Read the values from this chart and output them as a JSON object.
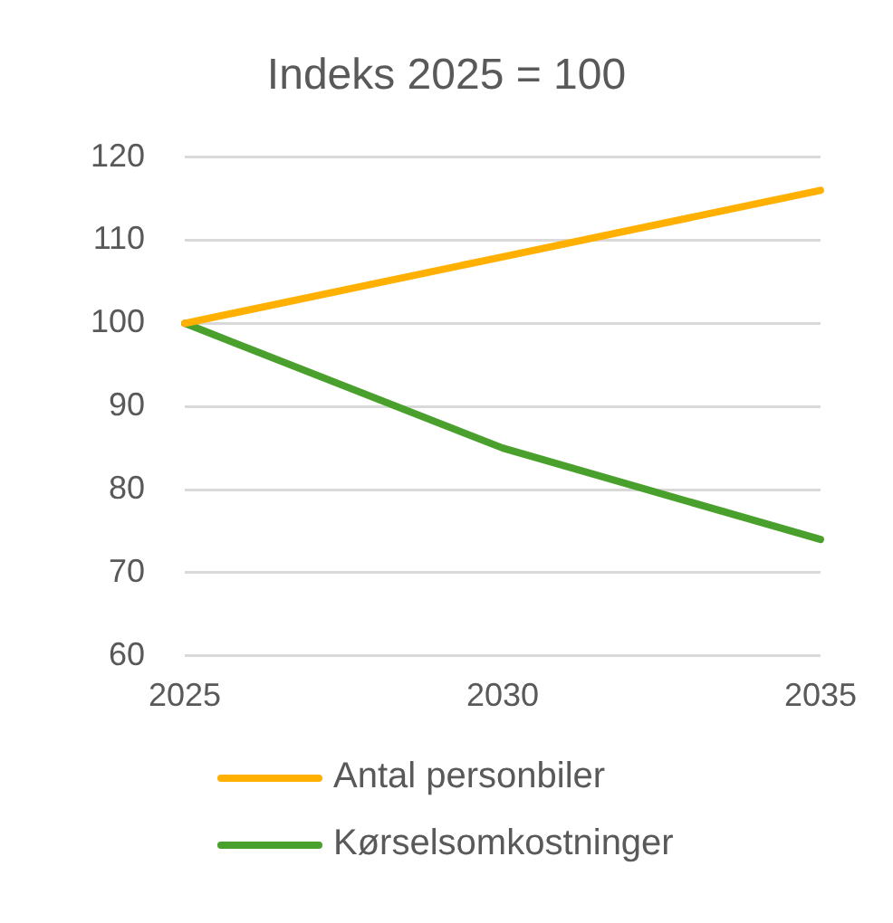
{
  "chart_data": {
    "type": "line",
    "title": "Indeks 2025 = 100",
    "categories": [
      "2025",
      "2030",
      "2035"
    ],
    "series": [
      {
        "name": "Antal personbiler",
        "color": "#ffb000",
        "values": [
          100,
          108,
          116
        ]
      },
      {
        "name": "Kørselsomkostninger",
        "color": "#4aa02c",
        "values": [
          100,
          85,
          74
        ]
      }
    ],
    "ylim": [
      60,
      120
    ],
    "yticks": [
      60,
      70,
      80,
      90,
      100,
      110,
      120
    ],
    "grid": "y",
    "legend": "bottom",
    "marker": "none",
    "line_style": "solid"
  }
}
